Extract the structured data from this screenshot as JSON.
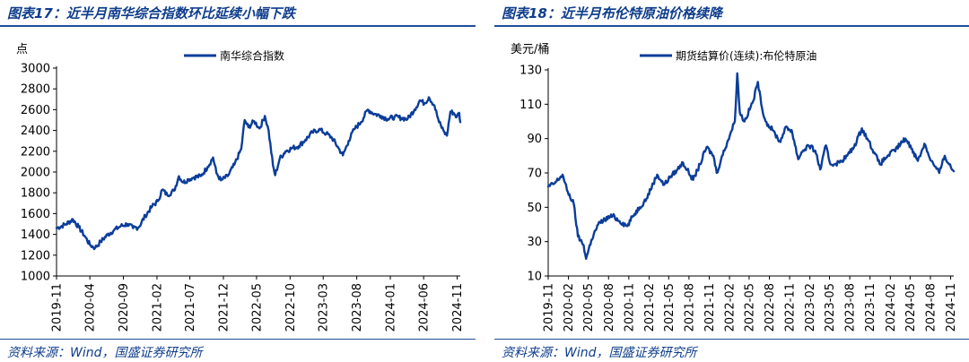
{
  "colors": {
    "series": "#0b3d9a",
    "title": "#0f3d8c",
    "rule": "#1f4e9c",
    "axis": "#000000"
  },
  "chart_data": [
    {
      "type": "line",
      "title": "图表17：近半月南华综合指数环比延续小幅下跌",
      "ylabel": "点",
      "ylim": [
        1000,
        3000
      ],
      "yticks": [
        1000,
        1200,
        1400,
        1600,
        1800,
        2000,
        2200,
        2400,
        2600,
        2800,
        3000
      ],
      "xticks": [
        "2019-11",
        "2020-04",
        "2020-09",
        "2021-02",
        "2021-07",
        "2021-12",
        "2022-05",
        "2022-10",
        "2023-03",
        "2023-08",
        "2024-01",
        "2024-06",
        "2024-11"
      ],
      "xlim": [
        "2019-11-01",
        "2024-11-15"
      ],
      "legend_position": "top-center",
      "source": "资料来源：Wind，国盛证券研究所",
      "series": [
        {
          "name": "南华综合指数",
          "points": [
            [
              "2019-11-01",
              1460
            ],
            [
              "2019-12-15",
              1500
            ],
            [
              "2020-01-15",
              1545
            ],
            [
              "2020-02-10",
              1470
            ],
            [
              "2020-03-10",
              1380
            ],
            [
              "2020-04-01",
              1300
            ],
            [
              "2020-04-25",
              1270
            ],
            [
              "2020-05-20",
              1330
            ],
            [
              "2020-06-20",
              1395
            ],
            [
              "2020-07-20",
              1440
            ],
            [
              "2020-08-20",
              1480
            ],
            [
              "2020-09-20",
              1500
            ],
            [
              "2020-10-15",
              1460
            ],
            [
              "2020-11-10",
              1470
            ],
            [
              "2020-12-10",
              1580
            ],
            [
              "2021-01-10",
              1670
            ],
            [
              "2021-02-05",
              1720
            ],
            [
              "2021-02-25",
              1830
            ],
            [
              "2021-03-20",
              1780
            ],
            [
              "2021-04-20",
              1820
            ],
            [
              "2021-05-12",
              1960
            ],
            [
              "2021-06-01",
              1900
            ],
            [
              "2021-06-25",
              1930
            ],
            [
              "2021-07-20",
              1950
            ],
            [
              "2021-08-20",
              1960
            ],
            [
              "2021-09-20",
              2050
            ],
            [
              "2021-10-15",
              2140
            ],
            [
              "2021-10-30",
              1990
            ],
            [
              "2021-11-20",
              1920
            ],
            [
              "2021-12-20",
              1960
            ],
            [
              "2022-01-20",
              2070
            ],
            [
              "2022-02-20",
              2220
            ],
            [
              "2022-03-08",
              2500
            ],
            [
              "2022-03-25",
              2430
            ],
            [
              "2022-04-20",
              2490
            ],
            [
              "2022-05-15",
              2420
            ],
            [
              "2022-06-08",
              2540
            ],
            [
              "2022-06-25",
              2400
            ],
            [
              "2022-07-15",
              2060
            ],
            [
              "2022-07-25",
              1970
            ],
            [
              "2022-08-15",
              2130
            ],
            [
              "2022-09-10",
              2200
            ],
            [
              "2022-10-10",
              2230
            ],
            [
              "2022-11-10",
              2250
            ],
            [
              "2022-12-10",
              2310
            ],
            [
              "2023-01-10",
              2380
            ],
            [
              "2023-02-10",
              2410
            ],
            [
              "2023-03-15",
              2370
            ],
            [
              "2023-04-10",
              2330
            ],
            [
              "2023-05-10",
              2230
            ],
            [
              "2023-05-30",
              2160
            ],
            [
              "2023-06-25",
              2300
            ],
            [
              "2023-07-20",
              2410
            ],
            [
              "2023-08-20",
              2480
            ],
            [
              "2023-09-20",
              2600
            ],
            [
              "2023-10-20",
              2560
            ],
            [
              "2023-11-20",
              2540
            ],
            [
              "2023-12-20",
              2510
            ],
            [
              "2024-01-20",
              2530
            ],
            [
              "2024-02-20",
              2520
            ],
            [
              "2024-03-20",
              2510
            ],
            [
              "2024-04-20",
              2600
            ],
            [
              "2024-05-15",
              2690
            ],
            [
              "2024-06-05",
              2660
            ],
            [
              "2024-06-25",
              2720
            ],
            [
              "2024-07-20",
              2640
            ],
            [
              "2024-08-10",
              2480
            ],
            [
              "2024-08-30",
              2400
            ],
            [
              "2024-09-15",
              2350
            ],
            [
              "2024-10-01",
              2580
            ],
            [
              "2024-10-15",
              2570
            ],
            [
              "2024-10-30",
              2530
            ],
            [
              "2024-11-10",
              2570
            ],
            [
              "2024-11-15",
              2480
            ]
          ]
        }
      ]
    },
    {
      "type": "line",
      "title": "图表18：近半月布伦特原油价格续降",
      "ylabel": "美元/桶",
      "ylim": [
        10,
        130
      ],
      "yticks": [
        10,
        30,
        50,
        70,
        90,
        110,
        130
      ],
      "xticks": [
        "2019-11",
        "2020-02",
        "2020-05",
        "2020-08",
        "2020-11",
        "2021-02",
        "2021-05",
        "2021-08",
        "2021-11",
        "2022-02",
        "2022-05",
        "2022-08",
        "2022-11",
        "2023-02",
        "2023-05",
        "2023-08",
        "2023-11",
        "2024-02",
        "2024-05",
        "2024-08",
        "2024-11"
      ],
      "xlim": [
        "2019-11-01",
        "2024-11-15"
      ],
      "legend_position": "top-center",
      "source": "资料来源：Wind，国盛证券研究所",
      "series": [
        {
          "name": "期货结算价(连续):布伦特原油",
          "points": [
            [
              "2019-11-01",
              62
            ],
            [
              "2019-12-01",
              64
            ],
            [
              "2020-01-05",
              69
            ],
            [
              "2020-01-25",
              60
            ],
            [
              "2020-02-25",
              52
            ],
            [
              "2020-03-15",
              33
            ],
            [
              "2020-04-10",
              28
            ],
            [
              "2020-04-21",
              20
            ],
            [
              "2020-05-15",
              31
            ],
            [
              "2020-06-15",
              40
            ],
            [
              "2020-07-15",
              43
            ],
            [
              "2020-08-20",
              45
            ],
            [
              "2020-09-20",
              42
            ],
            [
              "2020-10-25",
              39
            ],
            [
              "2020-11-20",
              45
            ],
            [
              "2020-12-20",
              50
            ],
            [
              "2021-01-20",
              55
            ],
            [
              "2021-02-20",
              64
            ],
            [
              "2021-03-10",
              69
            ],
            [
              "2021-04-10",
              63
            ],
            [
              "2021-05-10",
              68
            ],
            [
              "2021-06-10",
              72
            ],
            [
              "2021-07-05",
              76
            ],
            [
              "2021-08-20",
              66
            ],
            [
              "2021-09-20",
              75
            ],
            [
              "2021-10-20",
              85
            ],
            [
              "2021-11-20",
              80
            ],
            [
              "2021-12-05",
              70
            ],
            [
              "2021-12-25",
              78
            ],
            [
              "2022-01-25",
              89
            ],
            [
              "2022-02-25",
              100
            ],
            [
              "2022-03-08",
              128
            ],
            [
              "2022-03-20",
              105
            ],
            [
              "2022-04-10",
              100
            ],
            [
              "2022-05-20",
              112
            ],
            [
              "2022-06-10",
              123
            ],
            [
              "2022-06-25",
              110
            ],
            [
              "2022-07-15",
              100
            ],
            [
              "2022-08-15",
              95
            ],
            [
              "2022-09-20",
              88
            ],
            [
              "2022-10-10",
              96
            ],
            [
              "2022-11-10",
              95
            ],
            [
              "2022-12-10",
              78
            ],
            [
              "2022-12-25",
              82
            ],
            [
              "2023-01-25",
              86
            ],
            [
              "2023-02-25",
              83
            ],
            [
              "2023-03-20",
              72
            ],
            [
              "2023-04-15",
              86
            ],
            [
              "2023-05-05",
              75
            ],
            [
              "2023-06-15",
              76
            ],
            [
              "2023-07-20",
              80
            ],
            [
              "2023-08-20",
              85
            ],
            [
              "2023-09-25",
              96
            ],
            [
              "2023-10-20",
              90
            ],
            [
              "2023-11-20",
              82
            ],
            [
              "2023-12-15",
              75
            ],
            [
              "2024-01-20",
              80
            ],
            [
              "2024-02-20",
              83
            ],
            [
              "2024-04-10",
              90
            ],
            [
              "2024-05-10",
              84
            ],
            [
              "2024-06-05",
              77
            ],
            [
              "2024-07-05",
              87
            ],
            [
              "2024-08-05",
              77
            ],
            [
              "2024-09-10",
              70
            ],
            [
              "2024-10-05",
              80
            ],
            [
              "2024-10-25",
              75
            ],
            [
              "2024-11-15",
              71
            ]
          ]
        }
      ]
    }
  ]
}
